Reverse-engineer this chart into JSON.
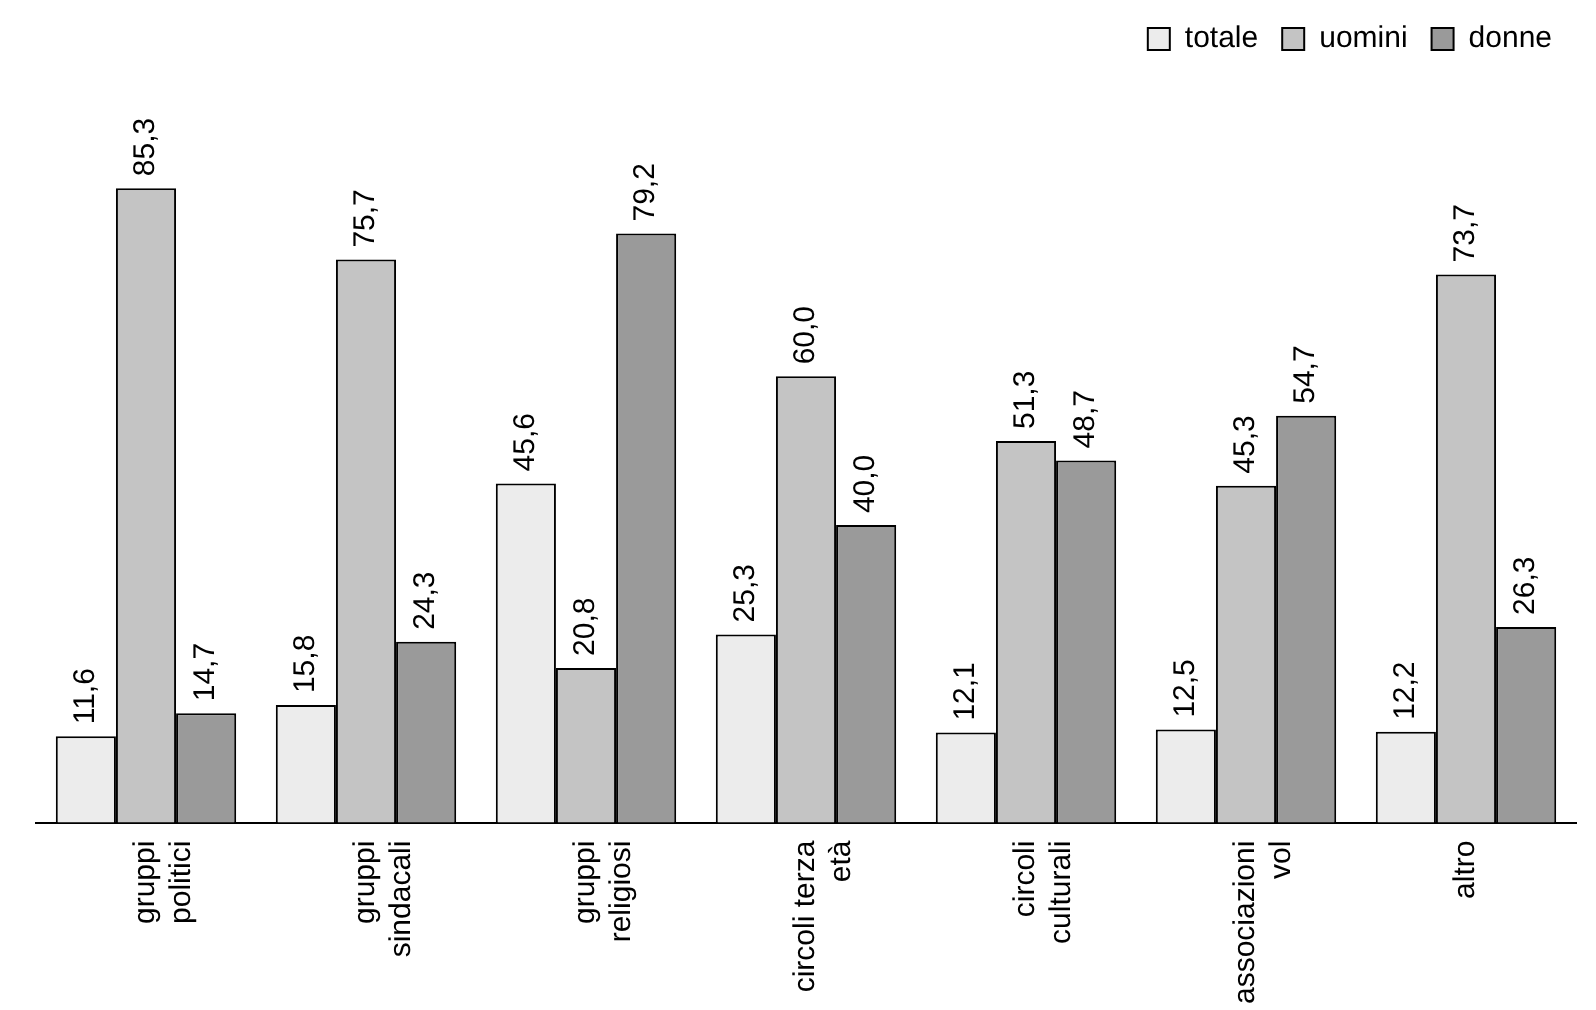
{
  "chart_data": {
    "type": "bar",
    "categories": [
      "gruppi politici",
      "gruppi sindacali",
      "gruppi religiosi",
      "circoli terza età",
      "circoli culturali",
      "associazioni vol",
      "altro"
    ],
    "series": [
      {
        "name": "totale",
        "color": "#ececec",
        "values": [
          11.6,
          15.8,
          45.6,
          25.3,
          12.1,
          12.5,
          12.2
        ],
        "value_labels": [
          "11,6",
          "15,8",
          "45,6",
          "25,3",
          "12,1",
          "12,5",
          "12,2"
        ]
      },
      {
        "name": "uomini",
        "color": "#c4c4c4",
        "values": [
          85.3,
          75.7,
          20.8,
          60.0,
          51.3,
          45.3,
          73.7
        ],
        "value_labels": [
          "85,3",
          "75,7",
          "20,8",
          "60,0",
          "51,3",
          "45,3",
          "73,7"
        ]
      },
      {
        "name": "donne",
        "color": "#9a9a9a",
        "values": [
          14.7,
          24.3,
          79.2,
          40.0,
          48.7,
          54.7,
          26.3
        ],
        "value_labels": [
          "14,7",
          "24,3",
          "79,2",
          "40,0",
          "48,7",
          "54,7",
          "26,3"
        ]
      }
    ],
    "legend": "top right"
  }
}
